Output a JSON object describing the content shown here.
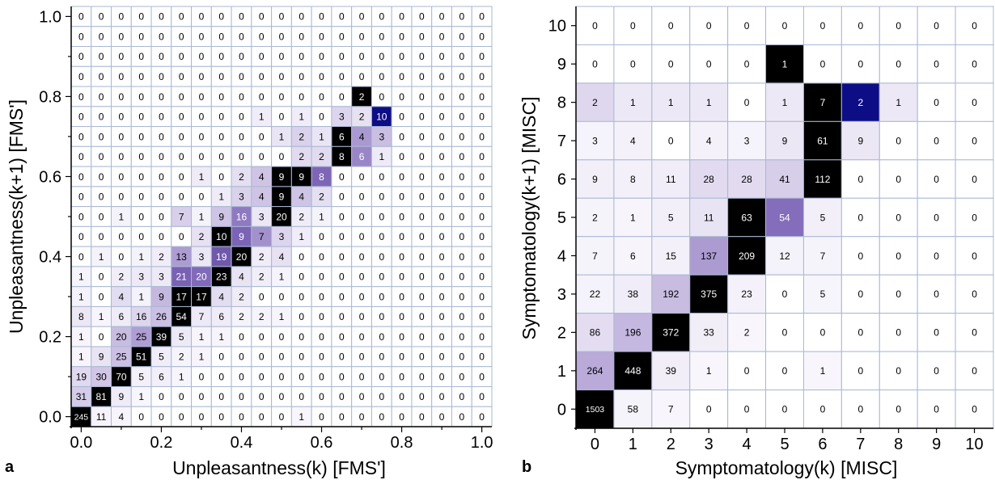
{
  "chart_data": [
    {
      "type": "heatmap",
      "panel_label": "a",
      "xlabel": "Unpleasantness(k) [FMS']",
      "ylabel": "Unpleasantness(k+1) [FMS']",
      "x_ticks": [
        "0.0",
        "0.2",
        "0.4",
        "0.6",
        "0.8",
        "1.0"
      ],
      "y_ticks": [
        "0.0",
        "0.2",
        "0.4",
        "0.6",
        "0.8",
        "1.0"
      ],
      "n_bins": 21,
      "rows_top_to_bottom": [
        [
          0,
          0,
          0,
          0,
          0,
          0,
          0,
          0,
          0,
          0,
          0,
          0,
          0,
          0,
          0,
          0,
          0,
          0,
          0,
          0,
          0
        ],
        [
          0,
          0,
          0,
          0,
          0,
          0,
          0,
          0,
          0,
          0,
          0,
          0,
          0,
          0,
          0,
          0,
          0,
          0,
          0,
          0,
          0
        ],
        [
          0,
          0,
          0,
          0,
          0,
          0,
          0,
          0,
          0,
          0,
          0,
          0,
          0,
          0,
          0,
          0,
          0,
          0,
          0,
          0,
          0
        ],
        [
          0,
          0,
          0,
          0,
          0,
          0,
          0,
          0,
          0,
          0,
          0,
          0,
          0,
          0,
          0,
          0,
          0,
          0,
          0,
          0,
          0
        ],
        [
          0,
          0,
          0,
          0,
          0,
          0,
          0,
          0,
          0,
          0,
          0,
          0,
          0,
          0,
          2,
          0,
          0,
          0,
          0,
          0,
          0
        ],
        [
          0,
          0,
          0,
          0,
          0,
          0,
          0,
          0,
          0,
          1,
          0,
          1,
          0,
          3,
          2,
          10,
          0,
          0,
          0,
          0,
          0
        ],
        [
          0,
          0,
          0,
          0,
          0,
          0,
          0,
          0,
          0,
          0,
          1,
          2,
          1,
          6,
          4,
          3,
          0,
          0,
          0,
          0,
          0
        ],
        [
          0,
          0,
          0,
          0,
          0,
          0,
          0,
          0,
          0,
          0,
          0,
          2,
          2,
          8,
          6,
          1,
          0,
          0,
          0,
          0,
          0
        ],
        [
          0,
          0,
          0,
          0,
          0,
          0,
          1,
          0,
          2,
          4,
          9,
          9,
          8,
          0,
          0,
          0,
          0,
          0,
          0,
          0,
          0
        ],
        [
          0,
          0,
          0,
          0,
          0,
          0,
          0,
          1,
          3,
          4,
          9,
          4,
          2,
          0,
          0,
          0,
          0,
          0,
          0,
          0,
          0
        ],
        [
          0,
          0,
          1,
          0,
          0,
          7,
          1,
          9,
          16,
          3,
          20,
          2,
          1,
          0,
          0,
          0,
          0,
          0,
          0,
          0,
          0
        ],
        [
          0,
          0,
          0,
          0,
          0,
          0,
          2,
          10,
          9,
          7,
          3,
          1,
          0,
          0,
          0,
          0,
          0,
          0,
          0,
          0,
          0
        ],
        [
          0,
          1,
          0,
          1,
          2,
          13,
          3,
          19,
          20,
          2,
          4,
          0,
          0,
          0,
          0,
          0,
          0,
          0,
          0,
          0,
          0
        ],
        [
          1,
          0,
          2,
          3,
          3,
          21,
          20,
          23,
          4,
          2,
          1,
          0,
          0,
          0,
          0,
          0,
          0,
          0,
          0,
          0,
          0
        ],
        [
          1,
          0,
          4,
          1,
          9,
          17,
          17,
          4,
          2,
          0,
          0,
          0,
          0,
          0,
          0,
          0,
          0,
          0,
          0,
          0,
          0
        ],
        [
          8,
          1,
          6,
          16,
          26,
          54,
          7,
          6,
          2,
          2,
          1,
          0,
          0,
          0,
          0,
          0,
          0,
          0,
          0,
          0,
          0
        ],
        [
          1,
          0,
          20,
          25,
          39,
          5,
          1,
          1,
          0,
          0,
          0,
          0,
          0,
          0,
          0,
          0,
          0,
          0,
          0,
          0,
          0
        ],
        [
          1,
          9,
          25,
          51,
          5,
          2,
          1,
          0,
          0,
          0,
          0,
          0,
          0,
          0,
          0,
          0,
          0,
          0,
          0,
          0,
          0
        ],
        [
          19,
          30,
          70,
          5,
          6,
          1,
          0,
          0,
          0,
          0,
          0,
          0,
          0,
          0,
          0,
          0,
          0,
          0,
          0,
          0,
          0
        ],
        [
          31,
          81,
          9,
          1,
          0,
          0,
          0,
          0,
          0,
          0,
          0,
          0,
          0,
          0,
          0,
          0,
          0,
          0,
          0,
          0,
          0
        ],
        [
          245,
          11,
          4,
          0,
          0,
          0,
          0,
          0,
          0,
          0,
          0,
          1,
          0,
          0,
          0,
          0,
          0,
          0,
          0,
          0,
          0
        ]
      ],
      "highlighted_cells": [
        {
          "row_from_top": 5,
          "col": 15,
          "value": 10
        }
      ]
    },
    {
      "type": "heatmap",
      "panel_label": "b",
      "xlabel": "Symptomatology(k) [MISC]",
      "ylabel": "Symptomatology(k+1) [MISC]",
      "x_ticks": [
        "0",
        "1",
        "2",
        "3",
        "4",
        "5",
        "6",
        "7",
        "8",
        "9",
        "10"
      ],
      "y_ticks": [
        "0",
        "1",
        "2",
        "3",
        "4",
        "5",
        "6",
        "7",
        "8",
        "9",
        "10"
      ],
      "n_bins": 11,
      "rows_top_to_bottom": [
        [
          0,
          0,
          0,
          0,
          0,
          0,
          0,
          0,
          0,
          0,
          0
        ],
        [
          0,
          0,
          0,
          0,
          0,
          1,
          0,
          0,
          0,
          0,
          0
        ],
        [
          2,
          1,
          1,
          1,
          0,
          1,
          7,
          2,
          1,
          0,
          0
        ],
        [
          3,
          4,
          0,
          4,
          3,
          9,
          61,
          9,
          0,
          0,
          0
        ],
        [
          9,
          8,
          11,
          28,
          28,
          41,
          112,
          0,
          0,
          0,
          0
        ],
        [
          2,
          1,
          5,
          11,
          63,
          54,
          5,
          0,
          0,
          0,
          0
        ],
        [
          7,
          6,
          15,
          137,
          209,
          12,
          7,
          0,
          0,
          0,
          0
        ],
        [
          22,
          38,
          192,
          375,
          23,
          0,
          5,
          0,
          0,
          0,
          0
        ],
        [
          86,
          196,
          372,
          33,
          2,
          0,
          0,
          0,
          0,
          0,
          0
        ],
        [
          264,
          448,
          39,
          1,
          0,
          0,
          1,
          0,
          0,
          0,
          0
        ],
        [
          1503,
          58,
          7,
          0,
          0,
          0,
          0,
          0,
          0,
          0,
          0
        ]
      ],
      "highlighted_cells": [
        {
          "row_from_top": 2,
          "col": 7,
          "value": 2
        }
      ]
    }
  ],
  "colors": {
    "grid": "#a9b8d2",
    "max_cell": "#000000",
    "highlight": "#0d0d85",
    "light": "#f6f4fb",
    "mid": "#7a62b5",
    "text_dark": "#000000",
    "text_light": "#ffffff"
  }
}
